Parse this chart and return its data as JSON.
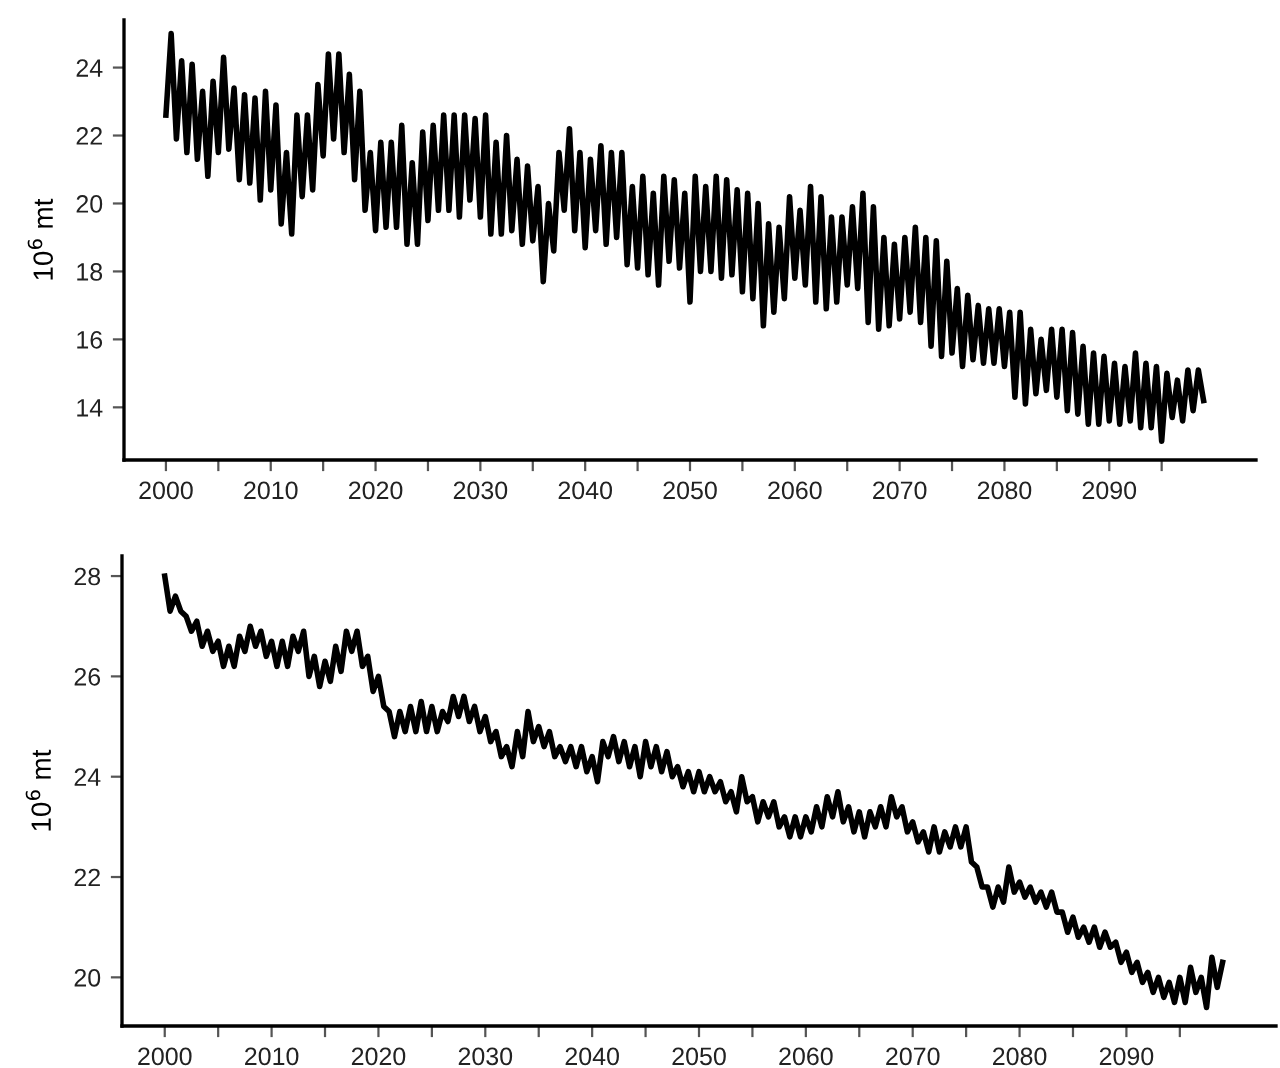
{
  "chart_data": [
    {
      "type": "line",
      "ylabel": "10$^{6}$ mt",
      "xlim": [
        1996,
        2104
      ],
      "ylim": [
        12.45,
        25.4
      ],
      "xticks": [
        2000,
        {
          "value": 2005,
          "label": null
        },
        2010,
        {
          "value": 2015,
          "label": null
        },
        2020,
        {
          "value": 2025,
          "label": null
        },
        2030,
        {
          "value": 2035,
          "label": null
        },
        2040,
        {
          "value": 2045,
          "label": null
        },
        2050,
        {
          "value": 2055,
          "label": null
        },
        2060,
        {
          "value": 2065,
          "label": null
        },
        2070,
        {
          "value": 2075,
          "label": null
        },
        2080,
        {
          "value": 2085,
          "label": null
        },
        2090,
        {
          "value": 2095,
          "label": null
        }
      ],
      "yticks": [
        14,
        16,
        18,
        20,
        22,
        24
      ],
      "grid": false,
      "legend": false,
      "marker": "none",
      "line_style": "solid",
      "x": [
        2000,
        2000.5,
        2001,
        2001.5,
        2002,
        2002.5,
        2003,
        2003.5,
        2004,
        2004.5,
        2005,
        2005.5,
        2006,
        2006.5,
        2007,
        2007.5,
        2008,
        2008.5,
        2009,
        2009.5,
        2010,
        2010.5,
        2011,
        2011.5,
        2012,
        2012.5,
        2013,
        2013.5,
        2014,
        2014.5,
        2015,
        2015.5,
        2016,
        2016.5,
        2017,
        2017.5,
        2018,
        2018.5,
        2019,
        2019.5,
        2020,
        2020.5,
        2021,
        2021.5,
        2022,
        2022.5,
        2023,
        2023.5,
        2024,
        2024.5,
        2025,
        2025.5,
        2026,
        2026.5,
        2027,
        2027.5,
        2028,
        2028.5,
        2029,
        2029.5,
        2030,
        2030.5,
        2031,
        2031.5,
        2032,
        2032.5,
        2033,
        2033.5,
        2034,
        2034.5,
        2035,
        2035.5,
        2036,
        2036.5,
        2037,
        2037.5,
        2038,
        2038.5,
        2039,
        2039.5,
        2040,
        2040.5,
        2041,
        2041.5,
        2042,
        2042.5,
        2043,
        2043.5,
        2044,
        2044.5,
        2045,
        2045.5,
        2046,
        2046.5,
        2047,
        2047.5,
        2048,
        2048.5,
        2049,
        2049.5,
        2050,
        2050.5,
        2051,
        2051.5,
        2052,
        2052.5,
        2053,
        2053.5,
        2054,
        2054.5,
        2055,
        2055.5,
        2056,
        2056.5,
        2057,
        2057.5,
        2058,
        2058.5,
        2059,
        2059.5,
        2060,
        2060.5,
        2061,
        2061.5,
        2062,
        2062.5,
        2063,
        2063.5,
        2064,
        2064.5,
        2065,
        2065.5,
        2066,
        2066.5,
        2067,
        2067.5,
        2068,
        2068.5,
        2069,
        2069.5,
        2070,
        2070.5,
        2071,
        2071.5,
        2072,
        2072.5,
        2073,
        2073.5,
        2074,
        2074.5,
        2075,
        2075.5,
        2076,
        2076.5,
        2077,
        2077.5,
        2078,
        2078.5,
        2079,
        2079.5,
        2080,
        2080.5,
        2081,
        2081.5,
        2082,
        2082.5,
        2083,
        2083.5,
        2084,
        2084.5,
        2085,
        2085.5,
        2086,
        2086.5,
        2087,
        2087.5,
        2088,
        2088.5,
        2089,
        2089.5,
        2090,
        2090.5,
        2091,
        2091.5,
        2092,
        2092.5,
        2093,
        2093.5,
        2094,
        2094.5,
        2095,
        2095.5,
        2096,
        2096.5,
        2097,
        2097.5,
        2098,
        2098.5,
        2099
      ],
      "series": [
        {
          "color": "#000000",
          "values": [
            22.6,
            25.0,
            21.9,
            24.2,
            21.5,
            24.1,
            21.3,
            23.3,
            20.8,
            23.6,
            21.5,
            24.3,
            21.6,
            23.4,
            20.7,
            23.2,
            20.6,
            23.1,
            20.1,
            23.3,
            20.4,
            22.9,
            19.4,
            21.5,
            19.1,
            22.6,
            20.2,
            22.6,
            20.4,
            23.5,
            21.4,
            24.4,
            21.9,
            24.4,
            21.5,
            23.8,
            20.7,
            23.3,
            19.8,
            21.5,
            19.2,
            21.8,
            19.3,
            21.8,
            19.3,
            22.3,
            18.8,
            21.2,
            18.8,
            22.1,
            19.5,
            22.3,
            19.8,
            22.6,
            19.8,
            22.6,
            19.6,
            22.6,
            20.1,
            22.5,
            19.6,
            22.6,
            19.1,
            21.8,
            19.1,
            22.0,
            19.2,
            21.3,
            18.8,
            21.1,
            18.9,
            20.5,
            17.7,
            20.0,
            18.6,
            21.5,
            19.8,
            22.2,
            19.2,
            21.5,
            18.7,
            21.3,
            19.2,
            21.7,
            18.8,
            21.5,
            19.0,
            21.5,
            18.2,
            20.5,
            18.1,
            20.8,
            17.9,
            20.3,
            17.6,
            20.8,
            18.3,
            20.7,
            18.1,
            20.3,
            17.1,
            20.8,
            18.0,
            20.5,
            18.0,
            20.8,
            17.8,
            20.7,
            17.9,
            20.4,
            17.4,
            20.3,
            17.2,
            20.0,
            16.4,
            19.4,
            16.8,
            19.3,
            17.2,
            20.2,
            17.8,
            19.8,
            17.6,
            20.5,
            17.1,
            20.2,
            16.9,
            19.6,
            17.1,
            19.6,
            17.6,
            19.9,
            17.5,
            20.3,
            16.5,
            19.9,
            16.3,
            19.0,
            16.4,
            18.8,
            16.6,
            19.0,
            16.8,
            19.3,
            16.5,
            19.0,
            15.8,
            18.9,
            15.5,
            18.3,
            15.6,
            17.5,
            15.2,
            17.3,
            15.4,
            17.0,
            15.3,
            16.9,
            15.3,
            16.9,
            15.2,
            16.8,
            14.3,
            16.8,
            14.1,
            16.3,
            14.4,
            16.0,
            14.5,
            16.3,
            14.3,
            16.3,
            13.9,
            16.2,
            13.8,
            15.8,
            13.5,
            15.6,
            13.5,
            15.5,
            13.6,
            15.3,
            13.5,
            15.2,
            13.6,
            15.6,
            13.4,
            15.3,
            13.4,
            15.2,
            13.0,
            15.0,
            13.7,
            14.8,
            13.6,
            15.1,
            13.9,
            15.1,
            14.2
          ]
        }
      ]
    },
    {
      "type": "line",
      "ylabel": "10$^{6}$ mt",
      "xlim": [
        1996,
        2104
      ],
      "ylim": [
        19.03,
        28.4
      ],
      "xticks": [
        2000,
        {
          "value": 2005,
          "label": null
        },
        2010,
        {
          "value": 2015,
          "label": null
        },
        2020,
        {
          "value": 2025,
          "label": null
        },
        2030,
        {
          "value": 2035,
          "label": null
        },
        2040,
        {
          "value": 2045,
          "label": null
        },
        2050,
        {
          "value": 2055,
          "label": null
        },
        2060,
        {
          "value": 2065,
          "label": null
        },
        2070,
        {
          "value": 2075,
          "label": null
        },
        2080,
        {
          "value": 2085,
          "label": null
        },
        2090,
        {
          "value": 2095,
          "label": null
        }
      ],
      "yticks": [
        20,
        22,
        24,
        26,
        28
      ],
      "grid": false,
      "legend": false,
      "marker": "none",
      "line_style": "solid",
      "x": [
        2000,
        2000.5,
        2001,
        2001.5,
        2002,
        2002.5,
        2003,
        2003.5,
        2004,
        2004.5,
        2005,
        2005.5,
        2006,
        2006.5,
        2007,
        2007.5,
        2008,
        2008.5,
        2009,
        2009.5,
        2010,
        2010.5,
        2011,
        2011.5,
        2012,
        2012.5,
        2013,
        2013.5,
        2014,
        2014.5,
        2015,
        2015.5,
        2016,
        2016.5,
        2017,
        2017.5,
        2018,
        2018.5,
        2019,
        2019.5,
        2020,
        2020.5,
        2021,
        2021.5,
        2022,
        2022.5,
        2023,
        2023.5,
        2024,
        2024.5,
        2025,
        2025.5,
        2026,
        2026.5,
        2027,
        2027.5,
        2028,
        2028.5,
        2029,
        2029.5,
        2030,
        2030.5,
        2031,
        2031.5,
        2032,
        2032.5,
        2033,
        2033.5,
        2034,
        2034.5,
        2035,
        2035.5,
        2036,
        2036.5,
        2037,
        2037.5,
        2038,
        2038.5,
        2039,
        2039.5,
        2040,
        2040.5,
        2041,
        2041.5,
        2042,
        2042.5,
        2043,
        2043.5,
        2044,
        2044.5,
        2045,
        2045.5,
        2046,
        2046.5,
        2047,
        2047.5,
        2048,
        2048.5,
        2049,
        2049.5,
        2050,
        2050.5,
        2051,
        2051.5,
        2052,
        2052.5,
        2053,
        2053.5,
        2054,
        2054.5,
        2055,
        2055.5,
        2056,
        2056.5,
        2057,
        2057.5,
        2058,
        2058.5,
        2059,
        2059.5,
        2060,
        2060.5,
        2061,
        2061.5,
        2062,
        2062.5,
        2063,
        2063.5,
        2064,
        2064.5,
        2065,
        2065.5,
        2066,
        2066.5,
        2067,
        2067.5,
        2068,
        2068.5,
        2069,
        2069.5,
        2070,
        2070.5,
        2071,
        2071.5,
        2072,
        2072.5,
        2073,
        2073.5,
        2074,
        2074.5,
        2075,
        2075.5,
        2076,
        2076.5,
        2077,
        2077.5,
        2078,
        2078.5,
        2079,
        2079.5,
        2080,
        2080.5,
        2081,
        2081.5,
        2082,
        2082.5,
        2083,
        2083.5,
        2084,
        2084.5,
        2085,
        2085.5,
        2086,
        2086.5,
        2087,
        2087.5,
        2088,
        2088.5,
        2089,
        2089.5,
        2090,
        2090.5,
        2091,
        2091.5,
        2092,
        2092.5,
        2093,
        2093.5,
        2094,
        2094.5,
        2095,
        2095.5,
        2096,
        2096.5,
        2097,
        2097.5,
        2098,
        2098.5,
        2099
      ],
      "series": [
        {
          "color": "#000000",
          "values": [
            28.0,
            27.3,
            27.6,
            27.3,
            27.2,
            26.9,
            27.1,
            26.6,
            26.9,
            26.5,
            26.7,
            26.2,
            26.6,
            26.2,
            26.8,
            26.5,
            27.0,
            26.6,
            26.9,
            26.4,
            26.7,
            26.2,
            26.7,
            26.2,
            26.8,
            26.5,
            26.9,
            26.0,
            26.4,
            25.8,
            26.3,
            25.9,
            26.6,
            26.1,
            26.9,
            26.5,
            26.9,
            26.2,
            26.4,
            25.7,
            26.0,
            25.4,
            25.3,
            24.8,
            25.3,
            24.9,
            25.4,
            24.9,
            25.5,
            24.9,
            25.4,
            24.9,
            25.3,
            25.1,
            25.6,
            25.2,
            25.6,
            25.1,
            25.4,
            24.9,
            25.2,
            24.7,
            24.9,
            24.4,
            24.6,
            24.2,
            24.9,
            24.4,
            25.3,
            24.7,
            25.0,
            24.6,
            24.9,
            24.4,
            24.6,
            24.3,
            24.6,
            24.2,
            24.6,
            24.1,
            24.4,
            23.9,
            24.7,
            24.4,
            24.8,
            24.3,
            24.7,
            24.2,
            24.6,
            24.0,
            24.7,
            24.2,
            24.6,
            24.1,
            24.5,
            24.0,
            24.2,
            23.8,
            24.1,
            23.7,
            24.1,
            23.7,
            24.0,
            23.7,
            23.9,
            23.5,
            23.7,
            23.3,
            24.0,
            23.5,
            23.6,
            23.1,
            23.5,
            23.2,
            23.5,
            23.0,
            23.2,
            22.8,
            23.2,
            22.8,
            23.2,
            22.9,
            23.4,
            23.0,
            23.6,
            23.2,
            23.7,
            23.1,
            23.4,
            22.9,
            23.3,
            22.8,
            23.3,
            23.0,
            23.4,
            23.0,
            23.6,
            23.2,
            23.4,
            22.9,
            23.1,
            22.7,
            22.9,
            22.5,
            23.0,
            22.5,
            22.9,
            22.6,
            23.0,
            22.6,
            23.0,
            22.3,
            22.2,
            21.8,
            21.8,
            21.4,
            21.8,
            21.5,
            22.2,
            21.7,
            21.9,
            21.6,
            21.8,
            21.5,
            21.7,
            21.4,
            21.7,
            21.3,
            21.3,
            20.9,
            21.2,
            20.8,
            21.0,
            20.7,
            21.0,
            20.6,
            20.9,
            20.6,
            20.7,
            20.3,
            20.5,
            20.1,
            20.3,
            19.9,
            20.1,
            19.7,
            20.0,
            19.6,
            19.9,
            19.5,
            20.0,
            19.5,
            20.2,
            19.7,
            20.0,
            19.4,
            20.4,
            19.8,
            20.3
          ]
        }
      ]
    }
  ]
}
